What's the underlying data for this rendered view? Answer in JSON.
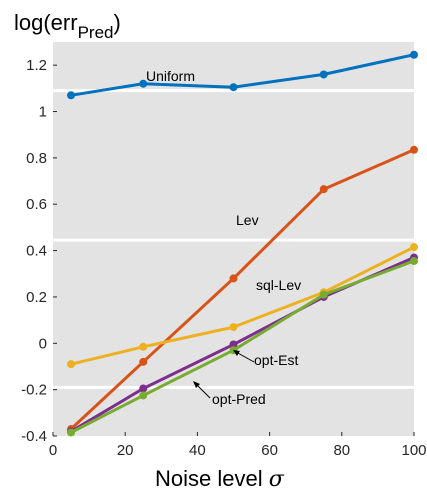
{
  "chart_data": {
    "type": "line",
    "ylabel_main": "log(err",
    "ylabel_sub": "Pred",
    "ylabel_close": ")",
    "xlabel": "Noise level",
    "xlabel_symbol": "σ",
    "xlim": [
      0,
      100
    ],
    "ylim": [
      -0.4,
      1.3
    ],
    "xticks": [
      0,
      20,
      40,
      60,
      80,
      100
    ],
    "yticks": [
      -0.4,
      -0.2,
      0,
      0.2,
      0.4,
      0.6,
      0.8,
      1,
      1.2
    ],
    "x": [
      5,
      25,
      50,
      75,
      100
    ],
    "grid": false,
    "background": "#e3e3e3",
    "separators": [
      -0.19,
      0.445,
      1.09
    ],
    "series": [
      {
        "name": "Uniform",
        "color": "#0072bd",
        "values": [
          1.07,
          1.12,
          1.105,
          1.16,
          1.245
        ]
      },
      {
        "name": "Lev",
        "color": "#d95319",
        "values": [
          -0.37,
          -0.08,
          0.28,
          0.665,
          0.835
        ]
      },
      {
        "name": "sql-Lev",
        "color": "#edb120",
        "values": [
          -0.09,
          -0.015,
          0.07,
          0.22,
          0.415
        ]
      },
      {
        "name": "opt-Est",
        "color": "#7e2f8e",
        "values": [
          -0.38,
          -0.195,
          -0.005,
          0.2,
          0.37
        ]
      },
      {
        "name": "opt-Pred",
        "color": "#77ac30",
        "values": [
          -0.385,
          -0.225,
          -0.03,
          0.21,
          0.355
        ]
      }
    ],
    "annotations": {
      "uniform": "Uniform",
      "lev": "Lev",
      "sql_lev": "sql-Lev",
      "opt_est": "opt-Est",
      "opt_pred": "opt-Pred"
    }
  }
}
